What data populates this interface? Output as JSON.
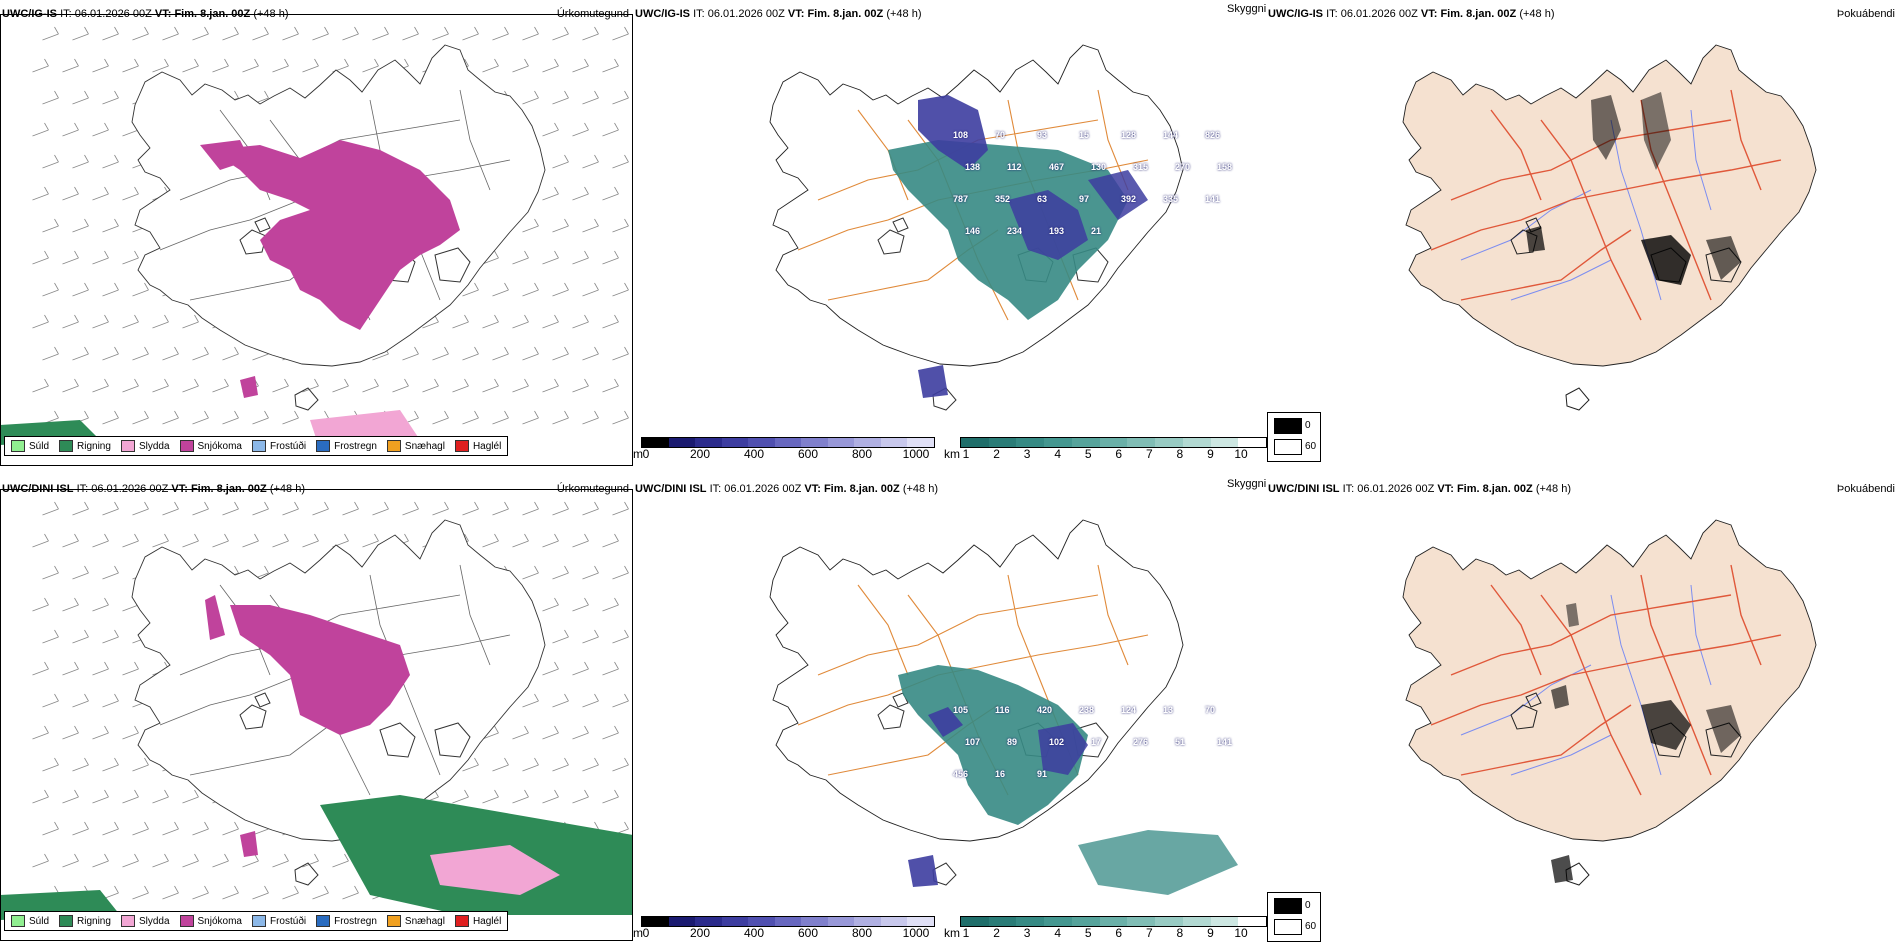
{
  "rows": [
    {
      "model": "UWC/IG-IS",
      "init_label": "IT:",
      "init_time": "06.01.2026 00Z",
      "valid_label": "VT:",
      "valid_time": "Fim. 8.jan. 00Z",
      "lead": "(+48 h)",
      "panels": [
        "Úrkomutegund",
        "Skyggni",
        "Þokuábendi"
      ],
      "visibility_labels": [
        "108",
        "70",
        "93",
        "15",
        "128",
        "144",
        "826",
        "138",
        "112",
        "467",
        "130",
        "315",
        "270",
        "158",
        "787",
        "352",
        "63",
        "97",
        "392",
        "335",
        "141",
        "146",
        "234",
        "193",
        "21"
      ]
    },
    {
      "model": "UWC/DINI ISL",
      "init_label": "IT:",
      "init_time": "06.01.2026 00Z",
      "valid_label": "VT:",
      "valid_time": "Fim. 8.jan. 00Z",
      "lead": "(+48 h)",
      "panels": [
        "Úrkomutegund",
        "Skyggni",
        "Þokuábendi"
      ],
      "visibility_labels": [
        "105",
        "116",
        "420",
        "238",
        "124",
        "13",
        "70",
        "107",
        "89",
        "102",
        "17",
        "276",
        "51",
        "141",
        "456",
        "16",
        "91"
      ]
    }
  ],
  "precip_legend": [
    {
      "label": "Súld",
      "color": "#90ee90"
    },
    {
      "label": "Rigning",
      "color": "#2e8b57"
    },
    {
      "label": "Slydda",
      "color": "#f2a6d4"
    },
    {
      "label": "Snjókoma",
      "color": "#c0439c"
    },
    {
      "label": "Frostúði",
      "color": "#8cb8e8"
    },
    {
      "label": "Frostregn",
      "color": "#2a6cc0"
    },
    {
      "label": "Snæhagl",
      "color": "#f0a020"
    },
    {
      "label": "Haglél",
      "color": "#e02020"
    }
  ],
  "ceiling_bar": {
    "unit": "m",
    "ticks": [
      "0",
      "200",
      "400",
      "600",
      "800",
      "1000"
    ],
    "colors": [
      "#000000",
      "#1a1a70",
      "#2b2b8c",
      "#3d3da0",
      "#5050b0",
      "#6868c0",
      "#8080cc",
      "#9898d8",
      "#b0b0e2",
      "#c8c8ec",
      "#e0e0f6"
    ]
  },
  "visibility_bar": {
    "unit": "km",
    "ticks": [
      "1",
      "2",
      "3",
      "4",
      "5",
      "6",
      "7",
      "8",
      "9",
      "10"
    ],
    "colors": [
      "#1f6e6a",
      "#2a7c77",
      "#368a84",
      "#449790",
      "#56a39b",
      "#6ab0a8",
      "#80bdb5",
      "#98cbc3",
      "#b2d9d2",
      "#cde7e2",
      "#ffffff"
    ]
  },
  "fog_legend": [
    {
      "label": "0",
      "color": "#000000"
    },
    {
      "label": "60",
      "color": "#ffffff"
    }
  ]
}
